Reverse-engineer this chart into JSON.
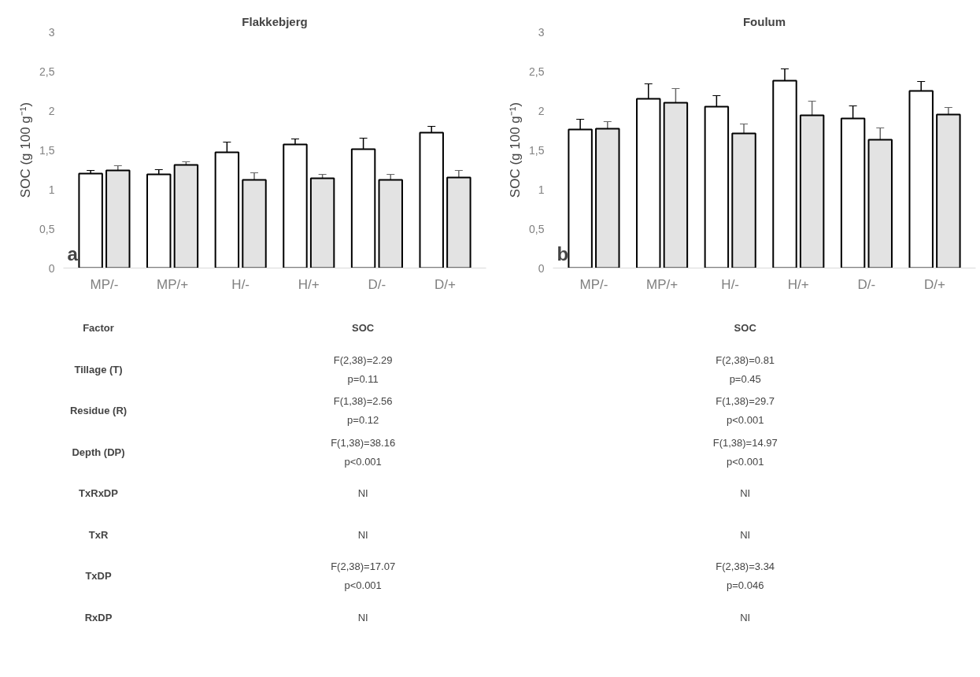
{
  "chart_data": [
    {
      "type": "bar",
      "title": "Flakkebjerg",
      "ylabel": "SOC (g 100 g⁻¹)",
      "categories": [
        "MP/-",
        "MP/+",
        "H/-",
        "H/+",
        "D/-",
        "D/+"
      ],
      "series": [
        {
          "color": "#ffffff",
          "values": [
            1.2,
            1.19,
            1.47,
            1.57,
            1.51,
            1.72
          ],
          "errors": [
            0.04,
            0.06,
            0.13,
            0.07,
            0.14,
            0.08
          ]
        },
        {
          "color": "#e3e3e3",
          "values": [
            1.24,
            1.31,
            1.12,
            1.14,
            1.12,
            1.15
          ],
          "errors": [
            0.06,
            0.04,
            0.09,
            0.05,
            0.07,
            0.09
          ]
        }
      ],
      "ylim": [
        0,
        3
      ],
      "yticks": [
        0,
        {
          "value": 0.5,
          "label": "0,5"
        },
        1,
        {
          "value": 1.5,
          "label": "1,5"
        },
        2,
        {
          "value": 2.5,
          "label": "2,5"
        },
        3
      ],
      "annotations": [
        "a"
      ]
    },
    {
      "type": "bar",
      "title": "Foulum",
      "ylabel": "SOC (g 100 g⁻¹)",
      "categories": [
        "MP/-",
        "MP/+",
        "H/-",
        "H/+",
        "D/-",
        "D/+"
      ],
      "series": [
        {
          "color": "#ffffff",
          "values": [
            1.76,
            2.15,
            2.05,
            2.38,
            1.9,
            2.25
          ],
          "errors": [
            0.13,
            0.19,
            0.14,
            0.15,
            0.16,
            0.12
          ]
        },
        {
          "color": "#e3e3e3",
          "values": [
            1.77,
            2.1,
            1.71,
            1.94,
            1.63,
            1.95
          ],
          "errors": [
            0.09,
            0.18,
            0.12,
            0.18,
            0.15,
            0.09
          ]
        }
      ],
      "ylim": [
        0,
        3
      ],
      "yticks": [
        0,
        {
          "value": 0.5,
          "label": "0,5"
        },
        1,
        {
          "value": 1.5,
          "label": "1,5"
        },
        2,
        {
          "value": 2.5,
          "label": "2,5"
        },
        3
      ],
      "annotations": [
        "b"
      ]
    },
    {
      "type": "other",
      "annotations": [
        "Factor",
        "SOC",
        "SOC",
        "Tillage (T)",
        "F(2,38)=2.29\np=0.11",
        "F(2,38)=0.81\np=0.45",
        "Residue (R)",
        "F(1,38)=2.56\np=0.12",
        "F(1,38)=29.7\np<0.001",
        "Depth (DP)",
        "F(1,38)=38.16\np<0.001",
        "F(1,38)=14.97\np<0.001",
        "TxRxDP",
        "NI",
        "NI",
        "TxR",
        "NI",
        "NI",
        "TxDP",
        "F(2,38)=17.07\np<0.001",
        "F(2,38)=3.34\np=0.046",
        "RxDP",
        "NI",
        "NI"
      ]
    }
  ]
}
